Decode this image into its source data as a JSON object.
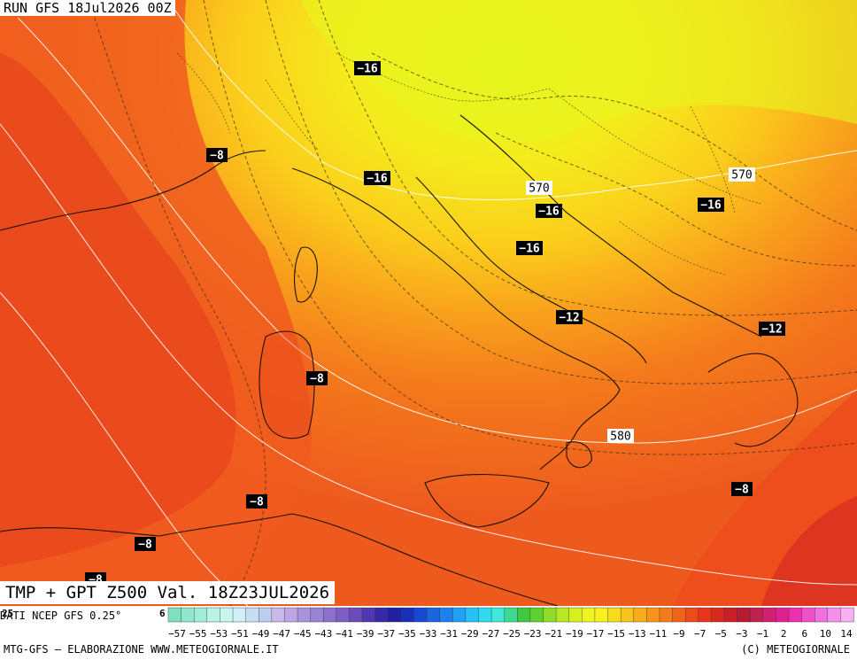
{
  "header": {
    "run": "RUN GFS 18Jul2026 00Z"
  },
  "product": {
    "title": "TMP + GPT Z500 Val. 18Z23JUL2026"
  },
  "source": {
    "text": "DATI NCEP GFS 0.25°",
    "scale_ends": [
      "25",
      "6"
    ]
  },
  "footer": {
    "left": "MTG-GFS – ELABORAZIONE WWW.METEOGIORNALE.IT",
    "right": "(C) METEOGIORNALE"
  },
  "colors": {
    "warm_deep": "#e8361a",
    "warm": "#f05a1e",
    "orange": "#f7891c",
    "yellow_orange": "#fbb51c",
    "yellow": "#f8e21c",
    "lime": "#e6f51e"
  },
  "map": {
    "temp_labels": [
      {
        "text": "−16"
      },
      {
        "text": "−8"
      },
      {
        "text": "−16"
      },
      {
        "text": "−16"
      },
      {
        "text": "−16"
      },
      {
        "text": "−16"
      },
      {
        "text": "−12"
      },
      {
        "text": "−12"
      },
      {
        "text": "−8"
      },
      {
        "text": "−8"
      },
      {
        "text": "−8"
      },
      {
        "text": "−8"
      },
      {
        "text": "−8"
      }
    ],
    "gph_labels": [
      {
        "text": "570"
      },
      {
        "text": "570"
      },
      {
        "text": "580"
      }
    ]
  },
  "scale": {
    "labels": [
      "−57",
      "−55",
      "−53",
      "−51",
      "−49",
      "−47",
      "−45",
      "−43",
      "−41",
      "−39",
      "−37",
      "−35",
      "−33",
      "−31",
      "−29",
      "−27",
      "−25",
      "−23",
      "−21",
      "−19",
      "−17",
      "−15",
      "−13",
      "−11",
      "−9",
      "−7",
      "−5",
      "−3",
      "−1",
      "2",
      "6",
      "10",
      "14"
    ],
    "colors": [
      "#7fe0c0",
      "#8ee8cc",
      "#a0eed8",
      "#b8f4e4",
      "#c8f6ea",
      "#d2eef6",
      "#c8dcf4",
      "#bccdee",
      "#c8b8ec",
      "#bea6e4",
      "#a994dc",
      "#9a82d4",
      "#8c70cc",
      "#7e5ec4",
      "#6c4cbc",
      "#5238b0",
      "#3828a8",
      "#2020a0",
      "#1830b8",
      "#1848d0",
      "#1c64e0",
      "#1e80ec",
      "#22a0f4",
      "#28c0f8",
      "#30d8f0",
      "#40e8d8",
      "#40d890",
      "#40c840",
      "#60d030",
      "#90dc28",
      "#b8e824",
      "#d8f020",
      "#eef420",
      "#f8f020",
      "#f8dc1c",
      "#f8c41c",
      "#f8ac1c",
      "#f8941c",
      "#f47c1c",
      "#f0641c",
      "#ec4c1c",
      "#e8361a",
      "#d82a1e",
      "#c82024",
      "#b81a30",
      "#c02050",
      "#d02070",
      "#e02090",
      "#ec30b0",
      "#f050cc",
      "#f070e0",
      "#f490ec",
      "#f8b0f4"
    ]
  }
}
